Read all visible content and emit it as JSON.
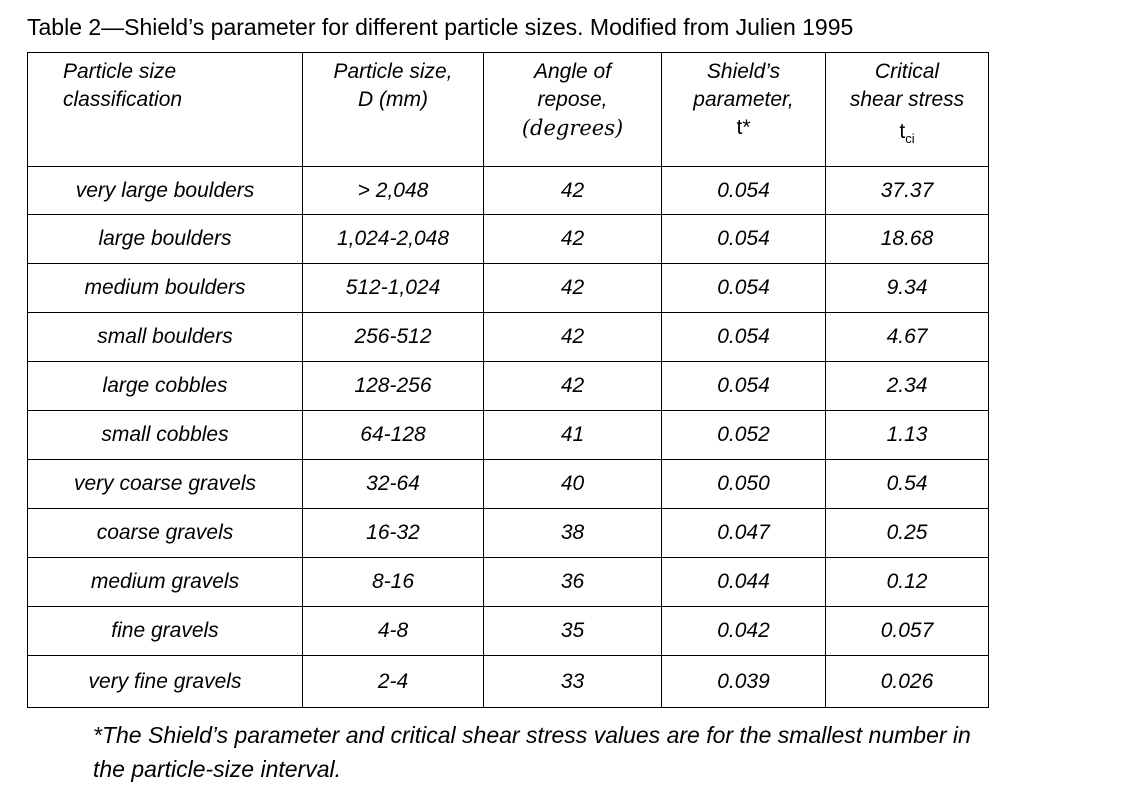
{
  "caption": "Table 2—Shield’s parameter for different particle sizes. Modified from Julien 1995",
  "headers": {
    "col1": [
      "Particle size",
      "classification"
    ],
    "col2": [
      "Particle size,",
      "D (mm)"
    ],
    "col3": [
      "Angle of",
      "repose,",
      "(degrees)"
    ],
    "col4": [
      "Shield’s",
      "parameter,",
      "t*"
    ],
    "col5": [
      "Critical",
      "shear stress"
    ],
    "col5_symbol": "t",
    "col5_symbol_sub": "ci"
  },
  "rows": [
    {
      "classification": "very large boulders",
      "size": "> 2,048",
      "angle": "42",
      "shields": "0.054",
      "stress": "37.37"
    },
    {
      "classification": "large boulders",
      "size": "1,024-2,048",
      "angle": "42",
      "shields": "0.054",
      "stress": "18.68"
    },
    {
      "classification": "medium boulders",
      "size": "512-1,024",
      "angle": "42",
      "shields": "0.054",
      "stress": "9.34"
    },
    {
      "classification": "small boulders",
      "size": "256-512",
      "angle": "42",
      "shields": "0.054",
      "stress": "4.67"
    },
    {
      "classification": "large cobbles",
      "size": "128-256",
      "angle": "42",
      "shields": "0.054",
      "stress": "2.34"
    },
    {
      "classification": "small cobbles",
      "size": "64-128",
      "angle": "41",
      "shields": "0.052",
      "stress": "1.13"
    },
    {
      "classification": "very coarse gravels",
      "size": "32-64",
      "angle": "40",
      "shields": "0.050",
      "stress": "0.54"
    },
    {
      "classification": "coarse gravels",
      "size": "16-32",
      "angle": "38",
      "shields": "0.047",
      "stress": "0.25"
    },
    {
      "classification": "medium gravels",
      "size": "8-16",
      "angle": "36",
      "shields": "0.044",
      "stress": "0.12"
    },
    {
      "classification": "fine gravels",
      "size": "4-8",
      "angle": "35",
      "shields": "0.042",
      "stress": "0.057"
    },
    {
      "classification": "very fine gravels",
      "size": "2-4",
      "angle": "33",
      "shields": "0.039",
      "stress": "0.026"
    }
  ],
  "footnote": "*The Shield’s parameter and critical shear stress values are for the smallest number in the particle-size interval."
}
